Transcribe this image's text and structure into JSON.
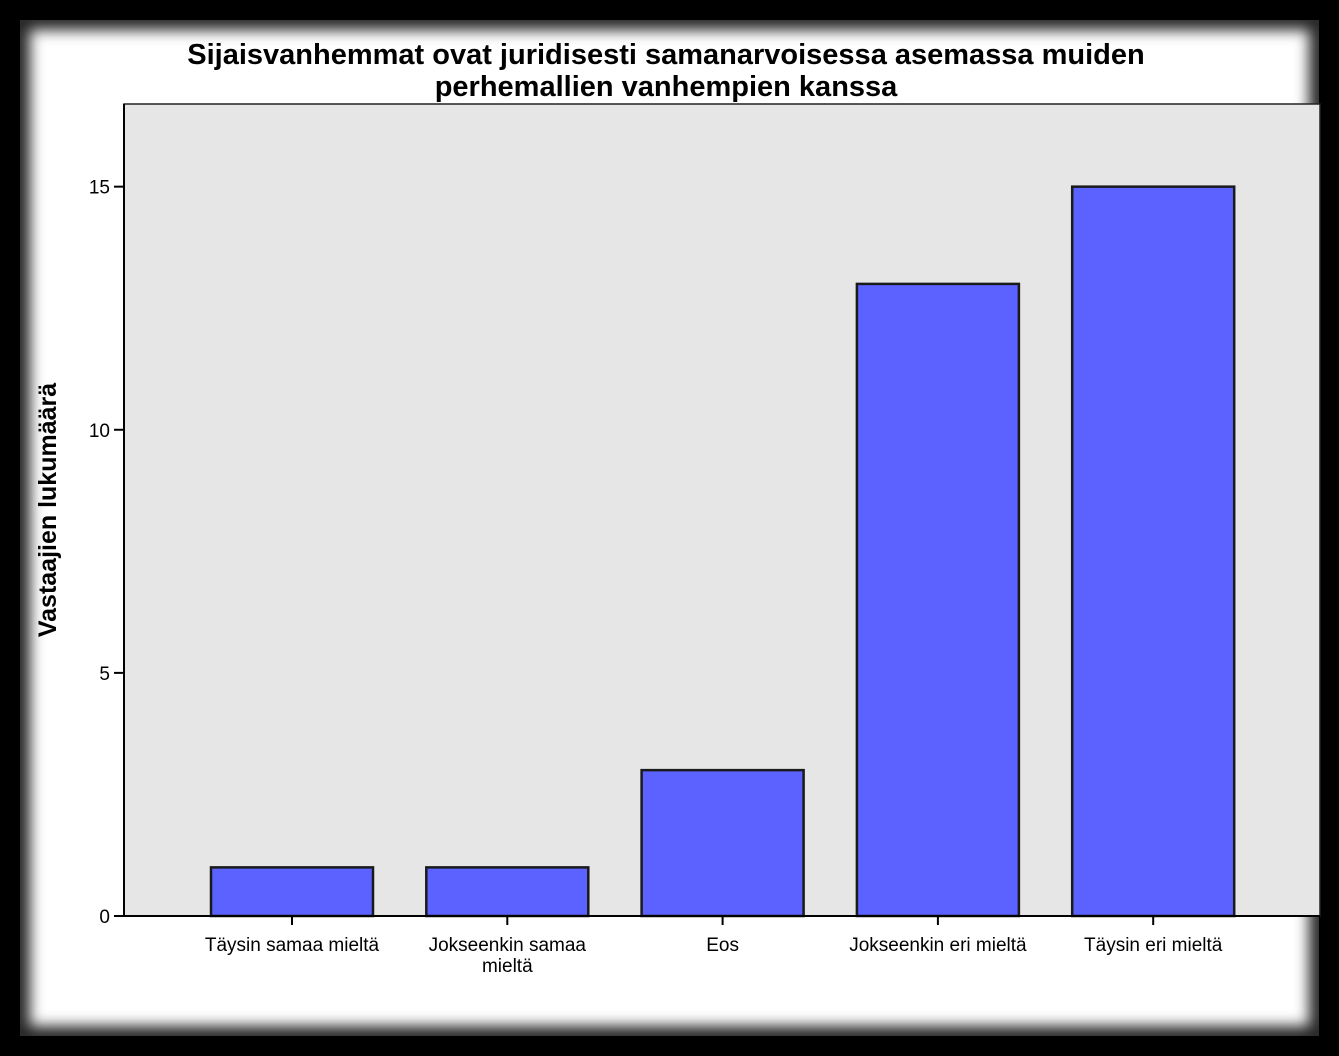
{
  "chart_data": {
    "type": "bar",
    "title_lines": [
      "Sijaisvanhemmat ovat juridisesti samanarvoisessa asemassa muiden",
      "perhemallien vanhempien kanssa"
    ],
    "xlabel": "",
    "ylabel": "Vastaajien lukumäärä",
    "categories": [
      [
        "Täysin samaa mieltä"
      ],
      [
        "Jokseenkin samaa",
        "mieltä"
      ],
      [
        "Eos"
      ],
      [
        "Jokseenkin eri mieltä"
      ],
      [
        "Täysin eri mieltä"
      ]
    ],
    "values": [
      1,
      1,
      3,
      13,
      15
    ],
    "ylim": [
      0,
      16.7
    ],
    "yticks": [
      0,
      5,
      10,
      15
    ],
    "grid": false,
    "colors": {
      "bar_fill": "#5b62ff",
      "bar_stroke": "#1a1a1a",
      "plot_background": "#e6e6e6",
      "axis": "#000000"
    }
  }
}
